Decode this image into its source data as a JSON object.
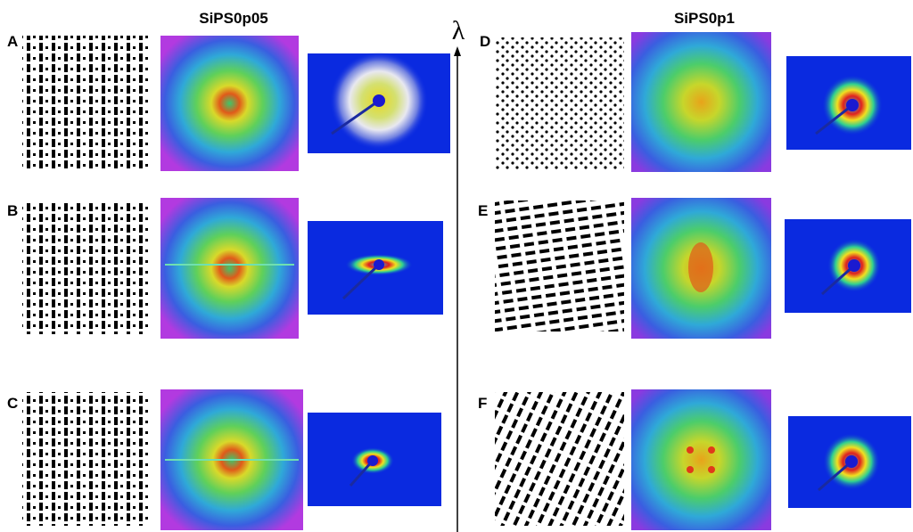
{
  "titles": {
    "left": "SiPS0p05",
    "right": "SiPS0p1"
  },
  "axis_label": "λ",
  "panels": [
    {
      "label": "A"
    },
    {
      "label": "B"
    },
    {
      "label": "C"
    },
    {
      "label": "D"
    },
    {
      "label": "E"
    },
    {
      "label": "F"
    }
  ]
}
